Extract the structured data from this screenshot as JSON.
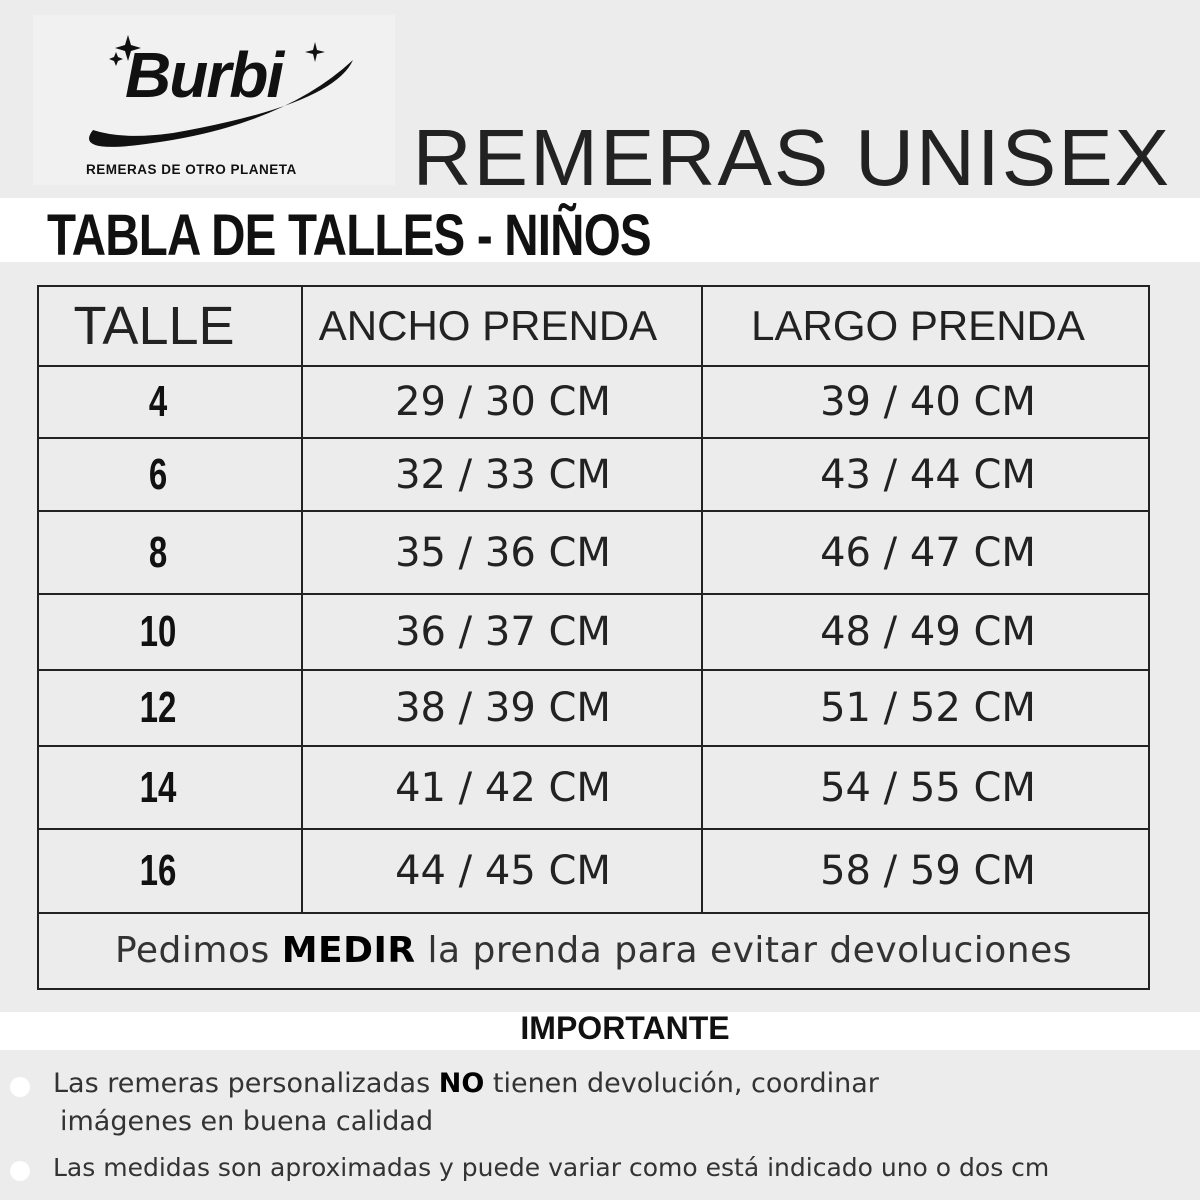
{
  "logo": {
    "brand": "Burbi",
    "tagline": "REMERAS DE OTRO PLANETA"
  },
  "title": "REMERAS UNISEX",
  "subtitle": "TABLA DE TALLES - NIÑOS",
  "table": {
    "headers": [
      "TALLE",
      "ANCHO PRENDA",
      "LARGO PRENDA"
    ],
    "rows": [
      [
        "4",
        "29 / 30 CM",
        "39 / 40 CM"
      ],
      [
        "6",
        "32 / 33 CM",
        "43 / 44 CM"
      ],
      [
        "8",
        "35 / 36 CM",
        "46 / 47 CM"
      ],
      [
        "10",
        "36 / 37 CM",
        "48 / 49 CM"
      ],
      [
        "12",
        "38 / 39 CM",
        "51 / 52 CM"
      ],
      [
        "14",
        "41 / 42 CM",
        "54 / 55 CM"
      ],
      [
        "16",
        "44 / 45 CM",
        "58 / 59 CM"
      ]
    ],
    "note": {
      "before": "Pedimos ",
      "bold": "MEDIR",
      "after": " la prenda para evitar devoluciones"
    }
  },
  "important": {
    "heading": "IMPORTANTE",
    "items": [
      {
        "before": "Las remeras personalizadas ",
        "bold": "NO",
        "after": " tienen devolución, coordinar",
        "line2": "imágenes en buena calidad"
      },
      {
        "text": "Las medidas son aproximadas y puede variar como está indicado uno o dos cm"
      }
    ]
  }
}
